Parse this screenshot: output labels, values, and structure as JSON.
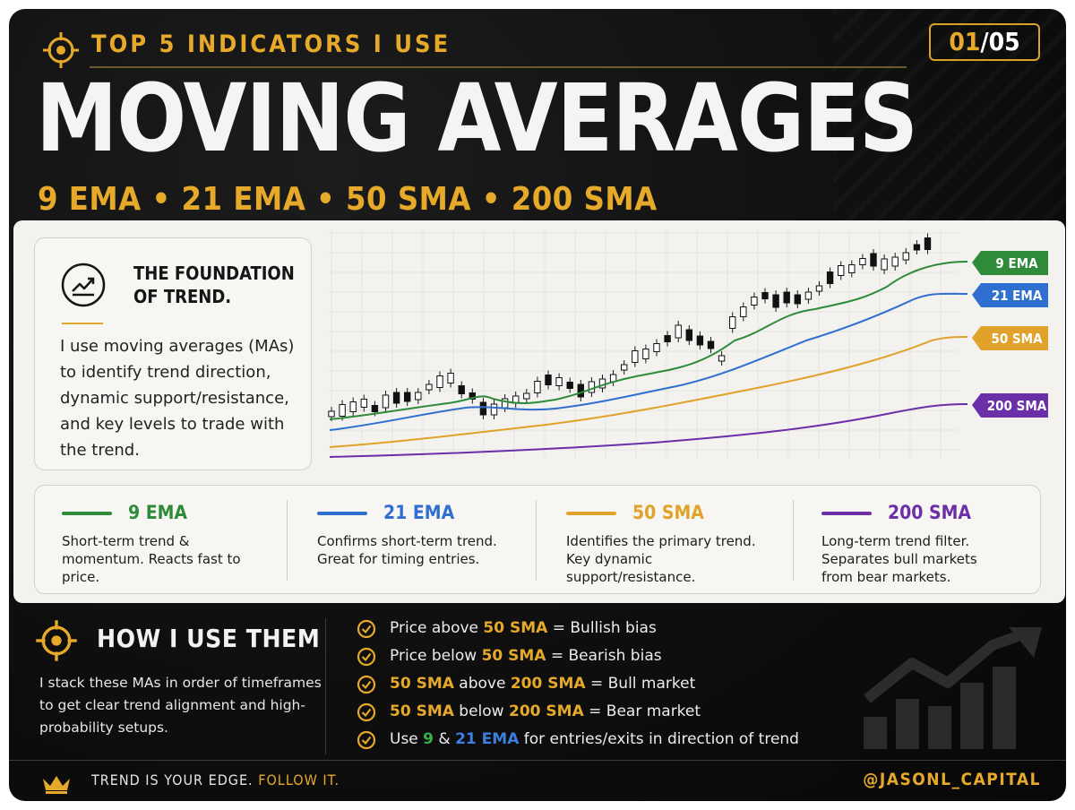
{
  "header": {
    "kicker": "TOP 5 INDICATORS I USE",
    "page_current": "01",
    "page_sep": "/",
    "page_total": "05",
    "title": "MOVING AVERAGES",
    "subtitle": "9 EMA • 21 EMA • 50 SMA • 200 SMA"
  },
  "foundation": {
    "icon": "trend-up-icon",
    "heading_line1": "THE FOUNDATION",
    "heading_line2": "OF TREND.",
    "body": "I use moving averages (MAs) to identify trend direction, dynamic support/resistance, and key levels to trade with the trend."
  },
  "chart_data": {
    "type": "line",
    "grid": true,
    "series": [
      {
        "name": "9 EMA",
        "color": "#2e8b3a"
      },
      {
        "name": "21 EMA",
        "color": "#2f6fd0"
      },
      {
        "name": "50 SMA",
        "color": "#e0a22a"
      },
      {
        "name": "200 SMA",
        "color": "#6b2fa8"
      }
    ]
  },
  "legend": [
    {
      "label": "9 EMA",
      "color": "#2e8b3a",
      "desc": "Short-term trend & momentum. Reacts fast to price."
    },
    {
      "label": "21 EMA",
      "color": "#2f6fd0",
      "desc": "Confirms short-term trend. Great for timing entries."
    },
    {
      "label": "50 SMA",
      "color": "#e0a22a",
      "desc": "Identifies the primary trend. Key dynamic support/resistance."
    },
    {
      "label": "200 SMA",
      "color": "#6b2fa8",
      "desc": "Long-term trend filter. Separates bull markets from bear markets."
    }
  ],
  "how": {
    "icon": "target-icon",
    "title": "HOW I USE THEM",
    "body": "I stack these MAs in order of timeframes to get clear trend alignment and high-probability setups.",
    "rules": [
      {
        "pre": "Price above ",
        "h1": "50 SMA",
        "mid": " = Bullish bias",
        "h2": "",
        "post": ""
      },
      {
        "pre": "Price below ",
        "h1": "50 SMA",
        "mid": " = Bearish bias",
        "h2": "",
        "post": ""
      },
      {
        "pre": "",
        "h1": "50 SMA",
        "mid": " above ",
        "h2": "200 SMA",
        "post": " = Bull market"
      },
      {
        "pre": "",
        "h1": "50 SMA",
        "mid": " below ",
        "h2": "200 SMA",
        "post": " = Bear market"
      }
    ],
    "rule5": {
      "pre": "Use ",
      "h1": "9",
      "mid": " & ",
      "h2": "21 EMA",
      "post": " for entries/exits in direction of trend"
    }
  },
  "footer": {
    "icon": "crown-icon",
    "text": "TREND IS YOUR EDGE.",
    "text_accent": "FOLLOW IT.",
    "handle": "@JASONL_CAPITAL"
  },
  "colors": {
    "accent": "#e6a92a",
    "background": "#0e0e0e",
    "panel": "#f3f2ef"
  }
}
